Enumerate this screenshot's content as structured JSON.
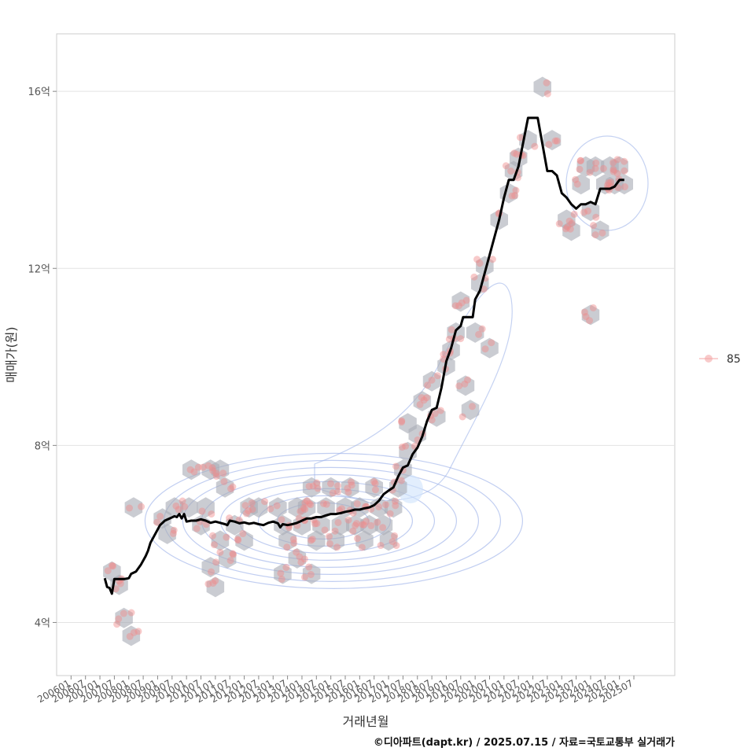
{
  "chart_data": {
    "type": "line",
    "title": "",
    "xlabel": "거래년월",
    "ylabel": "매매가(원)",
    "y_unit": "억",
    "ylim": [
      2.8,
      17.3
    ],
    "xlim": [
      "2005-07",
      "2026-12"
    ],
    "y_ticks": [
      {
        "value": 4,
        "label": "4억"
      },
      {
        "value": 8,
        "label": "8억"
      },
      {
        "value": 12,
        "label": "12억"
      },
      {
        "value": 16,
        "label": "16억"
      }
    ],
    "x_ticks": [
      "200601",
      "200607",
      "200701",
      "200707",
      "200801",
      "200807",
      "200901",
      "200907",
      "201001",
      "201007",
      "201101",
      "201107",
      "201201",
      "201207",
      "201301",
      "201307",
      "201401",
      "201407",
      "201501",
      "201507",
      "201601",
      "201607",
      "201701",
      "201707",
      "201801",
      "201807",
      "201901",
      "201907",
      "202001",
      "202007",
      "202101",
      "202107",
      "202201",
      "202207",
      "202301",
      "202307",
      "202401",
      "202407",
      "202501",
      "202507"
    ],
    "legend": [
      {
        "name": "85",
        "color": "#f4a6a6",
        "position": "right"
      }
    ],
    "credit": "©디아파트(dapt.kr) / 2025.07.15 / 자료=국토교통부 실거래가",
    "series": [
      {
        "name": "moving-average",
        "color": "#000000",
        "points": [
          [
            "2007-03",
            5.0
          ],
          [
            "2007-04",
            4.8
          ],
          [
            "2007-05",
            4.78
          ],
          [
            "2007-06",
            4.65
          ],
          [
            "2007-07",
            4.98
          ],
          [
            "2007-09",
            4.98
          ],
          [
            "2007-11",
            4.98
          ],
          [
            "2008-01",
            5.0
          ],
          [
            "2008-02",
            5.1
          ],
          [
            "2008-04",
            5.15
          ],
          [
            "2008-06",
            5.3
          ],
          [
            "2008-08",
            5.5
          ],
          [
            "2008-09",
            5.62
          ],
          [
            "2008-10",
            5.8
          ],
          [
            "2008-12",
            6.0
          ],
          [
            "2009-02",
            6.2
          ],
          [
            "2009-04",
            6.3
          ],
          [
            "2009-06",
            6.35
          ],
          [
            "2009-08",
            6.4
          ],
          [
            "2009-09",
            6.38
          ],
          [
            "2009-10",
            6.45
          ],
          [
            "2009-11",
            6.35
          ],
          [
            "2009-12",
            6.45
          ],
          [
            "2010-01",
            6.28
          ],
          [
            "2010-03",
            6.3
          ],
          [
            "2010-05",
            6.3
          ],
          [
            "2010-07",
            6.33
          ],
          [
            "2010-09",
            6.3
          ],
          [
            "2010-11",
            6.25
          ],
          [
            "2011-01",
            6.28
          ],
          [
            "2011-03",
            6.25
          ],
          [
            "2011-05",
            6.22
          ],
          [
            "2011-06",
            6.2
          ],
          [
            "2011-07",
            6.3
          ],
          [
            "2011-09",
            6.28
          ],
          [
            "2011-11",
            6.24
          ],
          [
            "2012-01",
            6.26
          ],
          [
            "2012-03",
            6.23
          ],
          [
            "2012-05",
            6.25
          ],
          [
            "2012-07",
            6.22
          ],
          [
            "2012-09",
            6.2
          ],
          [
            "2012-11",
            6.25
          ],
          [
            "2013-01",
            6.28
          ],
          [
            "2013-03",
            6.24
          ],
          [
            "2013-04",
            6.15
          ],
          [
            "2013-05",
            6.22
          ],
          [
            "2013-07",
            6.2
          ],
          [
            "2013-09",
            6.22
          ],
          [
            "2013-11",
            6.25
          ],
          [
            "2014-01",
            6.3
          ],
          [
            "2014-03",
            6.35
          ],
          [
            "2014-05",
            6.35
          ],
          [
            "2014-07",
            6.38
          ],
          [
            "2014-09",
            6.38
          ],
          [
            "2014-11",
            6.42
          ],
          [
            "2015-01",
            6.45
          ],
          [
            "2015-03",
            6.45
          ],
          [
            "2015-05",
            6.47
          ],
          [
            "2015-07",
            6.5
          ],
          [
            "2015-09",
            6.52
          ],
          [
            "2015-11",
            6.55
          ],
          [
            "2016-01",
            6.55
          ],
          [
            "2016-03",
            6.58
          ],
          [
            "2016-05",
            6.6
          ],
          [
            "2016-07",
            6.65
          ],
          [
            "2016-09",
            6.75
          ],
          [
            "2016-11",
            6.9
          ],
          [
            "2017-01",
            6.98
          ],
          [
            "2017-03",
            7.05
          ],
          [
            "2017-05",
            7.3
          ],
          [
            "2017-07",
            7.5
          ],
          [
            "2017-09",
            7.55
          ],
          [
            "2017-11",
            7.8
          ],
          [
            "2018-01",
            7.95
          ],
          [
            "2018-03",
            8.2
          ],
          [
            "2018-05",
            8.55
          ],
          [
            "2018-07",
            8.8
          ],
          [
            "2018-09",
            8.85
          ],
          [
            "2018-11",
            9.3
          ],
          [
            "2019-01",
            9.9
          ],
          [
            "2019-03",
            10.2
          ],
          [
            "2019-05",
            10.6
          ],
          [
            "2019-07",
            10.7
          ],
          [
            "2019-08",
            10.9
          ],
          [
            "2019-10",
            10.9
          ],
          [
            "2019-12",
            10.9
          ],
          [
            "2020-01",
            11.3
          ],
          [
            "2020-03",
            11.5
          ],
          [
            "2020-05",
            11.9
          ],
          [
            "2020-07",
            12.3
          ],
          [
            "2020-09",
            12.7
          ],
          [
            "2020-11",
            13.1
          ],
          [
            "2021-01",
            13.6
          ],
          [
            "2021-03",
            14.0
          ],
          [
            "2021-05",
            14.0
          ],
          [
            "2021-07",
            14.3
          ],
          [
            "2021-09",
            14.85
          ],
          [
            "2021-11",
            15.4
          ],
          [
            "2022-01",
            15.4
          ],
          [
            "2022-03",
            15.4
          ],
          [
            "2022-05",
            14.8
          ],
          [
            "2022-07",
            14.2
          ],
          [
            "2022-09",
            14.2
          ],
          [
            "2022-11",
            14.1
          ],
          [
            "2023-01",
            13.7
          ],
          [
            "2023-03",
            13.6
          ],
          [
            "2023-05",
            13.45
          ],
          [
            "2023-07",
            13.35
          ],
          [
            "2023-09",
            13.45
          ],
          [
            "2023-11",
            13.45
          ],
          [
            "2024-01",
            13.5
          ],
          [
            "2024-03",
            13.45
          ],
          [
            "2024-05",
            13.8
          ],
          [
            "2024-07",
            13.8
          ],
          [
            "2024-09",
            13.8
          ],
          [
            "2024-11",
            13.85
          ],
          [
            "2025-01",
            14.0
          ],
          [
            "2025-03",
            14.0
          ]
        ]
      }
    ],
    "hexbins": [
      [
        "2007-06",
        5.15
      ],
      [
        "2007-09",
        4.85
      ],
      [
        "2007-11",
        4.1
      ],
      [
        "2008-02",
        3.7
      ],
      [
        "2008-03",
        6.6
      ],
      [
        "2009-03",
        6.35
      ],
      [
        "2009-05",
        6.0
      ],
      [
        "2009-08",
        6.6
      ],
      [
        "2010-02",
        6.6
      ],
      [
        "2010-03",
        7.45
      ],
      [
        "2010-07",
        6.2
      ],
      [
        "2010-09",
        6.6
      ],
      [
        "2010-11",
        7.45
      ],
      [
        "2011-03",
        7.45
      ],
      [
        "2011-05",
        7.05
      ],
      [
        "2011-03",
        5.85
      ],
      [
        "2011-06",
        5.45
      ],
      [
        "2010-11",
        5.25
      ],
      [
        "2011-01",
        4.8
      ],
      [
        "2011-09",
        6.2
      ],
      [
        "2012-01",
        5.85
      ],
      [
        "2012-03",
        6.6
      ],
      [
        "2012-07",
        6.6
      ],
      [
        "2013-03",
        6.6
      ],
      [
        "2013-05",
        6.2
      ],
      [
        "2013-07",
        5.85
      ],
      [
        "2013-11",
        6.6
      ],
      [
        "2013-11",
        5.45
      ],
      [
        "2013-05",
        5.1
      ],
      [
        "2014-01",
        6.2
      ],
      [
        "2014-03",
        6.6
      ],
      [
        "2014-05",
        7.05
      ],
      [
        "2014-07",
        5.85
      ],
      [
        "2014-05",
        5.1
      ],
      [
        "2014-09",
        6.2
      ],
      [
        "2014-11",
        6.6
      ],
      [
        "2015-01",
        7.05
      ],
      [
        "2015-03",
        5.85
      ],
      [
        "2015-05",
        6.2
      ],
      [
        "2015-07",
        6.6
      ],
      [
        "2015-09",
        7.05
      ],
      [
        "2015-11",
        6.2
      ],
      [
        "2016-01",
        6.6
      ],
      [
        "2016-03",
        5.85
      ],
      [
        "2016-05",
        6.2
      ],
      [
        "2016-07",
        7.05
      ],
      [
        "2016-09",
        6.6
      ],
      [
        "2016-11",
        6.2
      ],
      [
        "2017-01",
        5.85
      ],
      [
        "2017-03",
        6.6
      ],
      [
        "2017-05",
        7.05
      ],
      [
        "2017-07",
        7.45
      ],
      [
        "2017-09",
        7.85
      ],
      [
        "2017-09",
        8.5
      ],
      [
        "2018-01",
        8.25
      ],
      [
        "2018-03",
        9.0
      ],
      [
        "2018-07",
        9.45
      ],
      [
        "2018-09",
        8.65
      ],
      [
        "2019-01",
        9.8
      ],
      [
        "2019-03",
        10.15
      ],
      [
        "2019-05",
        10.55
      ],
      [
        "2019-07",
        11.25
      ],
      [
        "2019-09",
        9.35
      ],
      [
        "2019-11",
        8.8
      ],
      [
        "2020-01",
        10.55
      ],
      [
        "2020-03",
        11.65
      ],
      [
        "2020-05",
        12.05
      ],
      [
        "2020-07",
        10.2
      ],
      [
        "2020-11",
        13.1
      ],
      [
        "2021-03",
        13.7
      ],
      [
        "2021-05",
        14.2
      ],
      [
        "2021-07",
        14.5
      ],
      [
        "2021-11",
        14.9
      ],
      [
        "2022-05",
        16.1
      ],
      [
        "2022-09",
        14.9
      ],
      [
        "2023-03",
        13.1
      ],
      [
        "2023-05",
        12.85
      ],
      [
        "2023-09",
        13.9
      ],
      [
        "2023-11",
        14.3
      ],
      [
        "2024-01",
        13.3
      ],
      [
        "2024-03",
        14.3
      ],
      [
        "2024-05",
        12.85
      ],
      [
        "2024-07",
        13.9
      ],
      [
        "2024-09",
        14.3
      ],
      [
        "2024-11",
        13.9
      ],
      [
        "2025-01",
        14.3
      ],
      [
        "2025-03",
        13.9
      ],
      [
        "2024-01",
        10.95
      ]
    ],
    "density_center": [
      "2014-09",
      6.4
    ]
  }
}
